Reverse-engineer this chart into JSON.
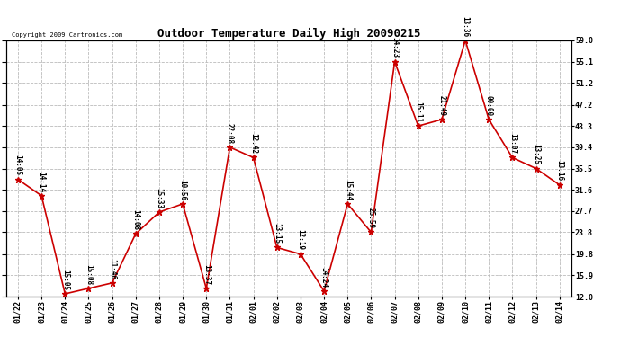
{
  "title": "Outdoor Temperature Daily High 20090215",
  "copyright": "Copyright 2009 Cartronics.com",
  "dates": [
    "01/22",
    "01/23",
    "01/24",
    "01/25",
    "01/26",
    "01/27",
    "01/28",
    "01/29",
    "01/30",
    "01/31",
    "02/01",
    "02/02",
    "02/03",
    "02/04",
    "02/05",
    "02/06",
    "02/07",
    "02/08",
    "02/09",
    "02/10",
    "02/11",
    "02/12",
    "02/13",
    "02/14"
  ],
  "values": [
    33.5,
    30.5,
    12.5,
    13.5,
    14.5,
    23.5,
    27.5,
    29.0,
    13.5,
    39.4,
    37.5,
    21.0,
    19.8,
    13.0,
    29.0,
    23.8,
    55.1,
    43.3,
    44.5,
    59.0,
    44.5,
    37.5,
    35.5,
    32.5
  ],
  "time_labels": [
    "14:05",
    "14:14",
    "15:05",
    "15:08",
    "11:46",
    "14:08",
    "15:33",
    "10:56",
    "13:37",
    "22:08",
    "12:42",
    "13:15",
    "12:19",
    "14:24",
    "15:44",
    "25:59",
    "14:23",
    "15:11",
    "21:49",
    "13:36",
    "00:00",
    "13:07",
    "13:25",
    "13:16"
  ],
  "ylim": [
    12.0,
    59.0
  ],
  "yticks": [
    12.0,
    15.9,
    19.8,
    23.8,
    27.7,
    31.6,
    35.5,
    39.4,
    43.3,
    47.2,
    51.2,
    55.1,
    59.0
  ],
  "line_color": "#cc0000",
  "marker_color": "#cc0000",
  "bg_color": "#ffffff",
  "grid_color": "#bbbbbb",
  "title_fontsize": 9,
  "label_fontsize": 6,
  "annotation_fontsize": 5.5
}
